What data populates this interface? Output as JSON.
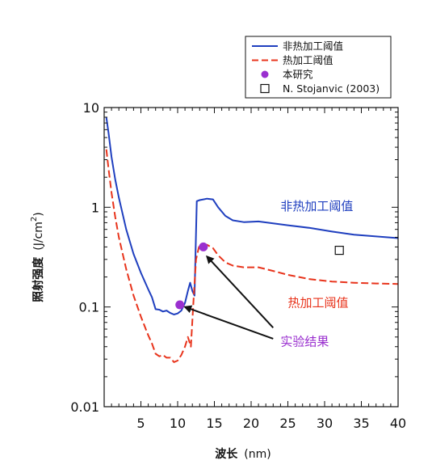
{
  "chart_data": {
    "type": "line",
    "title": "",
    "xlabel": "波长",
    "xunit": "(nm)",
    "ylabel": "照射强度",
    "yunit_prefix": "(J/cm",
    "yunit_sup": "2",
    "yunit_suffix": ")",
    "xlim": [
      0,
      40
    ],
    "ylim": [
      0.01,
      10
    ],
    "yscale": "log",
    "x_ticks": [
      5,
      10,
      15,
      20,
      25,
      30,
      35,
      40
    ],
    "x_tick_labels": [
      "5",
      "10",
      "15",
      "20",
      "25",
      "30",
      "35",
      "40"
    ],
    "y_ticks": [
      0.01,
      0.1,
      1,
      10
    ],
    "y_tick_labels": [
      "0.01",
      "0.1",
      "1",
      "10"
    ],
    "legend_position": "top-right",
    "legend": [
      {
        "label": "非热加工阈值",
        "marker": "solid-line",
        "color": "#1f3fbf"
      },
      {
        "label": "热加工阈值",
        "marker": "dashed-line",
        "color": "#e8341c"
      },
      {
        "label": "本研究",
        "marker": "filled-circle",
        "color": "#9a2fcf"
      },
      {
        "label": "N. Stojanvic (2003)",
        "marker": "open-square",
        "color": "#111111"
      }
    ],
    "series": [
      {
        "name": "非热加工阈值",
        "style": "solid",
        "color": "#1f3fbf",
        "x": [
          0.3,
          0.6,
          1,
          1.5,
          2,
          3,
          4,
          5,
          6,
          6.5,
          7,
          7.5,
          8,
          8.5,
          9,
          9.5,
          10,
          10.5,
          11,
          11.4,
          11.7,
          12,
          12.3,
          12.6,
          13,
          13.5,
          14,
          14.8,
          15.5,
          16.5,
          17.5,
          19,
          21,
          23,
          25,
          28,
          31,
          34,
          37,
          40
        ],
        "y": [
          8.0,
          5.5,
          3.2,
          1.9,
          1.25,
          0.6,
          0.34,
          0.22,
          0.15,
          0.125,
          0.095,
          0.094,
          0.09,
          0.092,
          0.087,
          0.084,
          0.086,
          0.092,
          0.11,
          0.145,
          0.175,
          0.145,
          0.13,
          1.15,
          1.18,
          1.2,
          1.22,
          1.2,
          1.0,
          0.82,
          0.74,
          0.71,
          0.72,
          0.69,
          0.66,
          0.62,
          0.57,
          0.53,
          0.51,
          0.49
        ]
      },
      {
        "name": "热加工阈值",
        "style": "dashed",
        "color": "#e8341c",
        "x": [
          0.3,
          0.6,
          1,
          1.5,
          2,
          3,
          4,
          5,
          6,
          6.5,
          7,
          7.5,
          8,
          8.5,
          9,
          9.5,
          10,
          10.5,
          11,
          11.4,
          11.8,
          12.2,
          12.5,
          12.9,
          13.3,
          13.6,
          14,
          14.8,
          15.5,
          16.5,
          17.5,
          19,
          21,
          23,
          25,
          28,
          31,
          34,
          37,
          40
        ],
        "y": [
          3.8,
          2.4,
          1.4,
          0.8,
          0.5,
          0.24,
          0.13,
          0.08,
          0.052,
          0.043,
          0.034,
          0.032,
          0.033,
          0.031,
          0.031,
          0.028,
          0.029,
          0.033,
          0.04,
          0.05,
          0.04,
          0.13,
          0.3,
          0.4,
          0.42,
          0.42,
          0.42,
          0.39,
          0.33,
          0.28,
          0.26,
          0.25,
          0.25,
          0.23,
          0.21,
          0.19,
          0.18,
          0.175,
          0.172,
          0.17
        ]
      }
    ],
    "points": [
      {
        "series": "本研究",
        "marker": "filled-circle",
        "color": "#9a2fcf",
        "x": 10.3,
        "y": 0.105
      },
      {
        "series": "本研究",
        "marker": "filled-circle",
        "color": "#9a2fcf",
        "x": 13.5,
        "y": 0.4
      },
      {
        "series": "N. Stojanvic (2003)",
        "marker": "open-square",
        "color": "#111111",
        "x": 32,
        "y": 0.37
      }
    ],
    "annotations": [
      {
        "text": "非热加工阈值",
        "x": 24,
        "y": 0.93,
        "color": "#1f3fbf"
      },
      {
        "text": "热加工阈值",
        "x": 25,
        "y": 0.1,
        "color": "#e8341c"
      },
      {
        "text": "实验结果",
        "x": 24,
        "y": 0.041,
        "color": "#9a2fcf"
      }
    ],
    "arrows": [
      {
        "from": [
          23,
          0.048
        ],
        "to": [
          11,
          0.1
        ]
      },
      {
        "from": [
          23,
          0.062
        ],
        "to": [
          14,
          0.32
        ]
      }
    ],
    "grid": false
  }
}
